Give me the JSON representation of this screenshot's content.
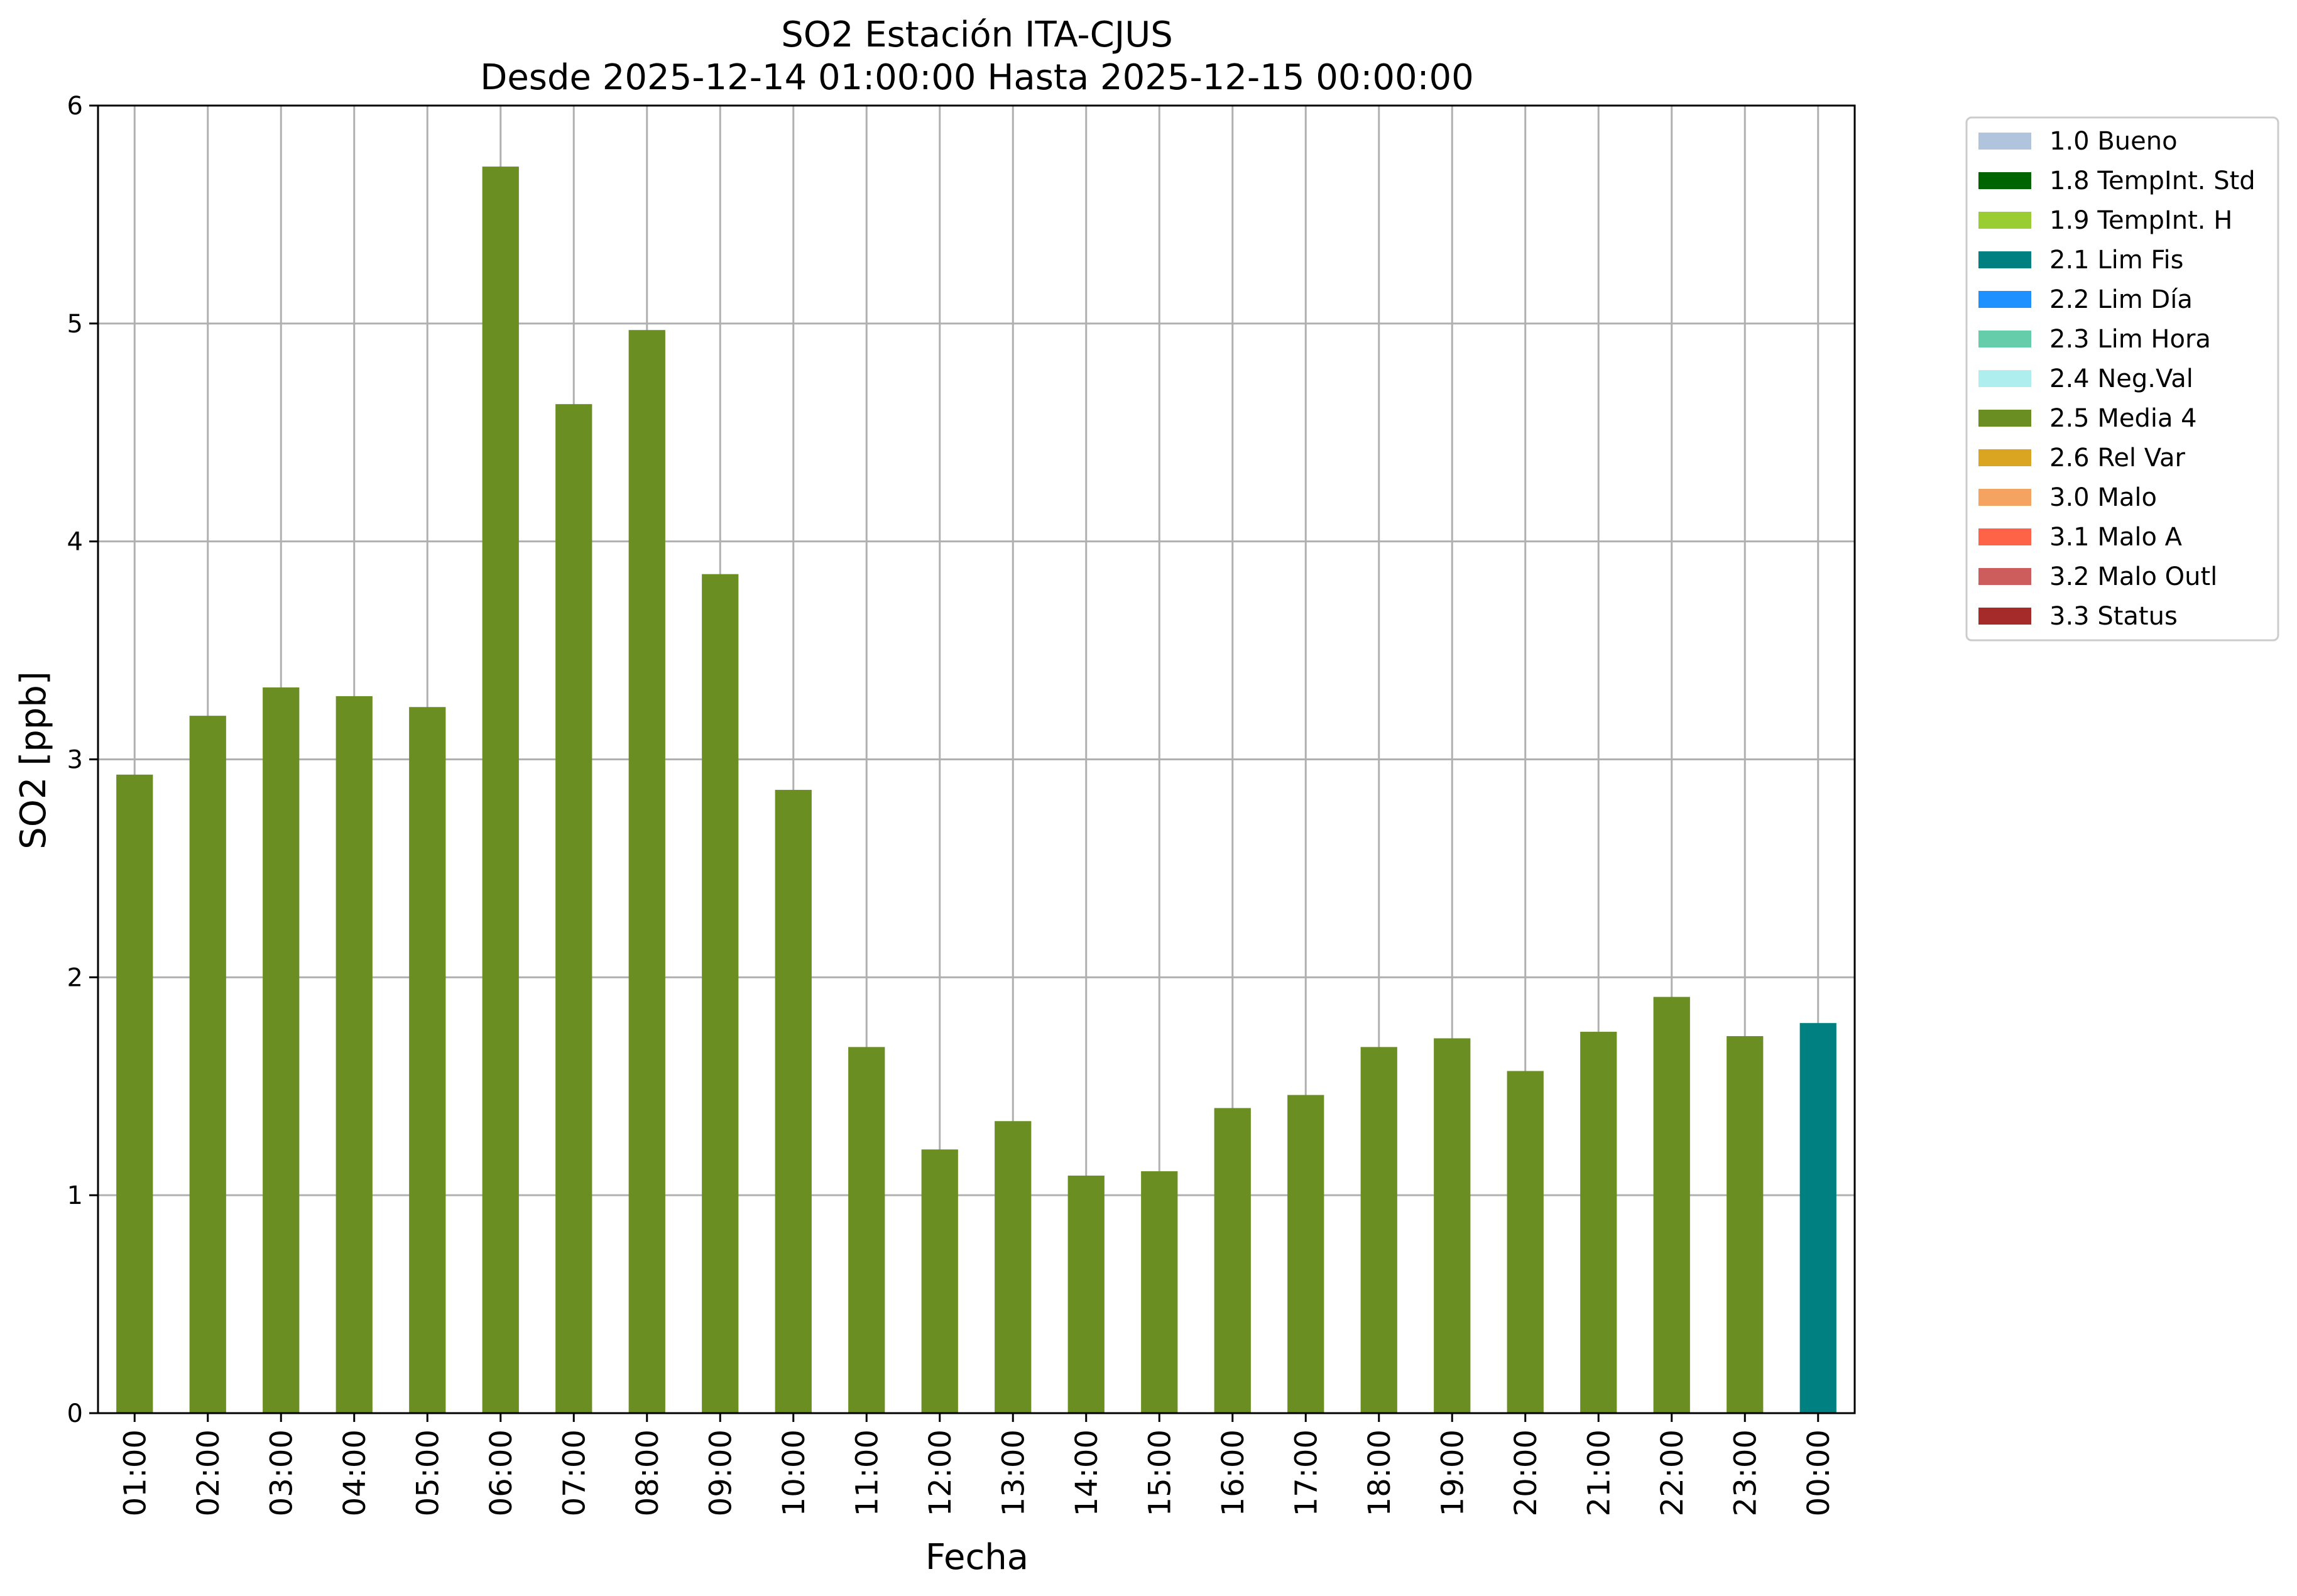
{
  "chart_data": {
    "type": "bar",
    "title": "SO2 Estación ITA-CJUS",
    "subtitle": "Desde 2025-12-14 01:00:00 Hasta 2025-12-15 00:00:00",
    "xlabel": "Fecha",
    "ylabel": "SO2 [ppb]",
    "ylim": [
      0,
      6
    ],
    "yticks": [
      "0",
      "1",
      "2",
      "3",
      "4",
      "5",
      "6"
    ],
    "grid": true,
    "legend_position": "outside-top-right",
    "categories": [
      "01:00",
      "02:00",
      "03:00",
      "04:00",
      "05:00",
      "06:00",
      "07:00",
      "08:00",
      "09:00",
      "10:00",
      "11:00",
      "12:00",
      "13:00",
      "14:00",
      "15:00",
      "16:00",
      "17:00",
      "18:00",
      "19:00",
      "20:00",
      "21:00",
      "22:00",
      "23:00",
      "00:00"
    ],
    "values": [
      2.93,
      3.2,
      3.33,
      3.29,
      3.24,
      5.72,
      4.63,
      4.97,
      3.85,
      2.86,
      1.68,
      1.21,
      1.34,
      1.09,
      1.11,
      1.4,
      1.46,
      1.68,
      1.72,
      1.57,
      1.75,
      1.91,
      1.73,
      1.79
    ],
    "bar_flags": [
      "2.5 Media 4",
      "2.5 Media 4",
      "2.5 Media 4",
      "2.5 Media 4",
      "2.5 Media 4",
      "2.5 Media 4",
      "2.5 Media 4",
      "2.5 Media 4",
      "2.5 Media 4",
      "2.5 Media 4",
      "2.5 Media 4",
      "2.5 Media 4",
      "2.5 Media 4",
      "2.5 Media 4",
      "2.5 Media 4",
      "2.5 Media 4",
      "2.5 Media 4",
      "2.5 Media 4",
      "2.5 Media 4",
      "2.5 Media 4",
      "2.5 Media 4",
      "2.5 Media 4",
      "2.5 Media 4",
      "2.1 Lim Fis"
    ],
    "legend": [
      {
        "label": "1.0 Bueno",
        "color": "#b0c4de"
      },
      {
        "label": "1.8 TempInt. Std",
        "color": "#006400"
      },
      {
        "label": "1.9 TempInt. H",
        "color": "#9acd32"
      },
      {
        "label": "2.1 Lim Fis",
        "color": "#008080"
      },
      {
        "label": "2.2 Lim Día",
        "color": "#1e90ff"
      },
      {
        "label": "2.3 Lim Hora",
        "color": "#66cdaa"
      },
      {
        "label": "2.4 Neg.Val",
        "color": "#afeeee"
      },
      {
        "label": "2.5 Media 4",
        "color": "#6b8e23"
      },
      {
        "label": "2.6 Rel Var",
        "color": "#daa520"
      },
      {
        "label": "3.0 Malo",
        "color": "#f4a460"
      },
      {
        "label": "3.1 Malo A",
        "color": "#ff6347"
      },
      {
        "label": "3.2 Malo Outl",
        "color": "#cd5c5c"
      },
      {
        "label": "3.3 Status",
        "color": "#a52a2a"
      }
    ]
  }
}
